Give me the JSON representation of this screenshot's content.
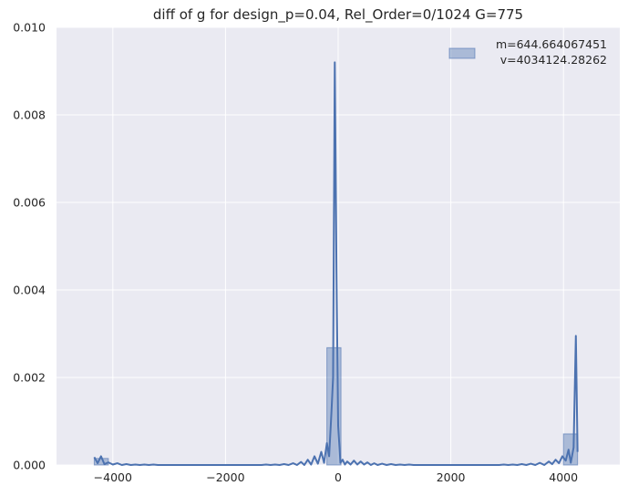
{
  "chart_data": {
    "type": "bar",
    "title": "diff of g for design_p=0.04, Rel_Order=0/1024 G=775",
    "xlabel": "",
    "ylabel": "",
    "xlim": [
      -5000,
      5000
    ],
    "ylim": [
      0,
      0.01
    ],
    "xticks": [
      -4000,
      -2000,
      0,
      2000,
      4000
    ],
    "xtick_labels": [
      "−4000",
      "−2000",
      "0",
      "2000",
      "4000"
    ],
    "yticks": [
      0,
      0.002,
      0.004,
      0.006,
      0.008,
      0.01
    ],
    "ytick_labels": [
      "0.000",
      "0.002",
      "0.004",
      "0.006",
      "0.008",
      "0.010"
    ],
    "grid": true,
    "legend_position": "upper right",
    "legend": {
      "line1": "m=644.664067451",
      "line2": "v=4034124.28262"
    },
    "histogram": {
      "name": "m=644.664067451\n v=4034124.28262",
      "bins": [
        {
          "x0": -4330,
          "x1": -4080,
          "value": 0.00015
        },
        {
          "x0": -200,
          "x1": 50,
          "value": 0.00268
        },
        {
          "x0": 4000,
          "x1": 4250,
          "value": 0.00071
        }
      ],
      "color": "#4c72b0"
    },
    "kde": {
      "x": [
        -4330,
        -4270,
        -4210,
        -4150,
        -4080,
        -4000,
        -3920,
        -3840,
        -3760,
        -3680,
        -3600,
        -3520,
        -3440,
        -3360,
        -3280,
        -3200,
        -3120,
        -3040,
        -2960,
        -2880,
        -2800,
        -2720,
        -2640,
        -2560,
        -2480,
        -2400,
        -2320,
        -2240,
        -2160,
        -2080,
        -2000,
        -1920,
        -1840,
        -1760,
        -1680,
        -1600,
        -1520,
        -1440,
        -1360,
        -1280,
        -1200,
        -1120,
        -1040,
        -960,
        -880,
        -800,
        -730,
        -660,
        -600,
        -540,
        -480,
        -420,
        -360,
        -300,
        -250,
        -200,
        -160,
        -120,
        -90,
        -60,
        -30,
        0,
        40,
        80,
        120,
        160,
        220,
        280,
        340,
        400,
        460,
        520,
        580,
        640,
        700,
        780,
        860,
        940,
        1020,
        1100,
        1180,
        1260,
        1340,
        1420,
        1500,
        1580,
        1660,
        1740,
        1820,
        1900,
        1980,
        2060,
        2140,
        2220,
        2300,
        2380,
        2460,
        2540,
        2620,
        2700,
        2780,
        2860,
        2940,
        3020,
        3100,
        3180,
        3260,
        3340,
        3420,
        3500,
        3580,
        3660,
        3740,
        3800,
        3860,
        3920,
        3980,
        4040,
        4090,
        4130,
        4180,
        4220,
        4250
      ],
      "y": [
        0.00018,
        4e-05,
        0.0002,
        2e-05,
        6e-05,
        1e-05,
        4e-05,
        0.0,
        2e-05,
        0.0,
        1e-05,
        0.0,
        1e-05,
        0.0,
        1e-05,
        0.0,
        0.0,
        0.0,
        0.0,
        0.0,
        0.0,
        0.0,
        0.0,
        0.0,
        0.0,
        0.0,
        0.0,
        0.0,
        0.0,
        0.0,
        0.0,
        0.0,
        0.0,
        0.0,
        0.0,
        0.0,
        0.0,
        0.0,
        0.0,
        1e-05,
        0.0,
        1e-05,
        0.0,
        2e-05,
        0.0,
        4e-05,
        0.0,
        7e-05,
        0.0,
        0.00012,
        1e-05,
        0.0002,
        3e-05,
        0.0003,
        5e-05,
        0.0005,
        0.0002,
        0.00118,
        0.002,
        0.0092,
        0.0045,
        0.0009,
        5e-05,
        0.00012,
        1e-05,
        8e-05,
        1e-05,
        0.0001,
        1e-05,
        8e-05,
        1e-05,
        6e-05,
        0.0,
        4e-05,
        0.0,
        3e-05,
        0.0,
        2e-05,
        0.0,
        1e-05,
        0.0,
        1e-05,
        0.0,
        0.0,
        0.0,
        0.0,
        0.0,
        0.0,
        0.0,
        0.0,
        0.0,
        0.0,
        0.0,
        0.0,
        0.0,
        0.0,
        0.0,
        0.0,
        0.0,
        0.0,
        0.0,
        0.0,
        1e-05,
        0.0,
        1e-05,
        0.0,
        2e-05,
        0.0,
        3e-05,
        0.0,
        5e-05,
        0.0,
        8e-05,
        2e-05,
        0.00012,
        4e-05,
        0.0002,
        0.0001,
        0.00035,
        5e-05,
        0.0004,
        0.00295,
        0.0003
      ],
      "color": "#4c72b0"
    }
  },
  "style": {
    "axes_bg": "#eaeaf2",
    "grid_color": "#ffffff",
    "series_color": "#4c72b0",
    "text_color": "#262626"
  }
}
